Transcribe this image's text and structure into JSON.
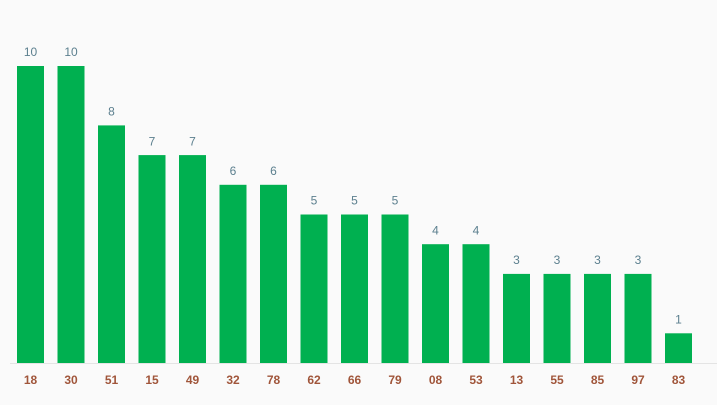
{
  "chart_data": {
    "type": "bar",
    "categories": [
      "18",
      "30",
      "51",
      "15",
      "49",
      "32",
      "78",
      "62",
      "66",
      "79",
      "08",
      "53",
      "13",
      "55",
      "85",
      "97",
      "83"
    ],
    "values": [
      10,
      10,
      8,
      7,
      7,
      6,
      6,
      5,
      5,
      5,
      4,
      4,
      3,
      3,
      3,
      3,
      1
    ],
    "color": "#00b050"
  }
}
